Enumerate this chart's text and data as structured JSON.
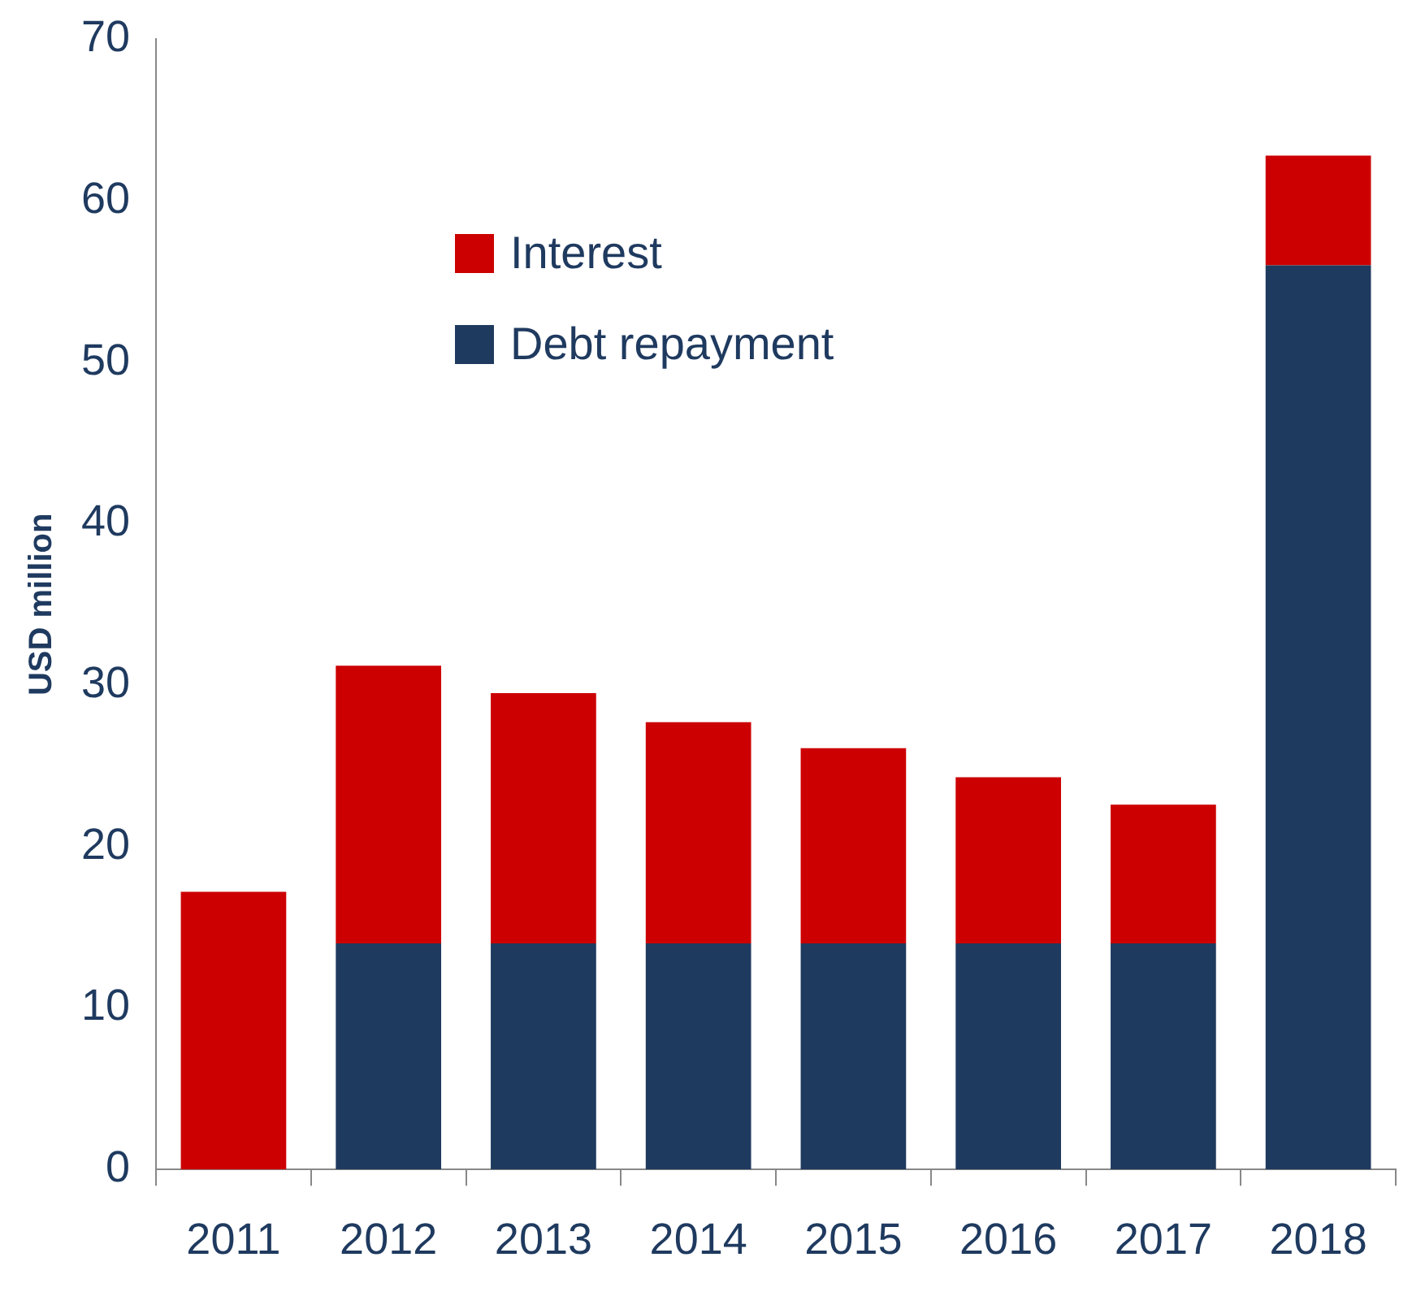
{
  "chart_data": {
    "type": "bar",
    "ylabel": "USD million",
    "categories": [
      "2011",
      "2012",
      "2013",
      "2014",
      "2015",
      "2016",
      "2017",
      "2018"
    ],
    "series": [
      {
        "name": "Debt repayment",
        "color": "#1f3a5f",
        "values": [
          0,
          14,
          14,
          14,
          14,
          14,
          14,
          56
        ]
      },
      {
        "name": "Interest",
        "color": "#cc0000",
        "values": [
          17.2,
          17.2,
          15.5,
          13.7,
          12.1,
          10.3,
          8.6,
          6.8
        ]
      }
    ],
    "stacked": true,
    "ylim": [
      0,
      70
    ],
    "yticks": [
      0,
      10,
      20,
      30,
      40,
      50,
      60,
      70
    ],
    "grid": false,
    "legend": "top left"
  }
}
